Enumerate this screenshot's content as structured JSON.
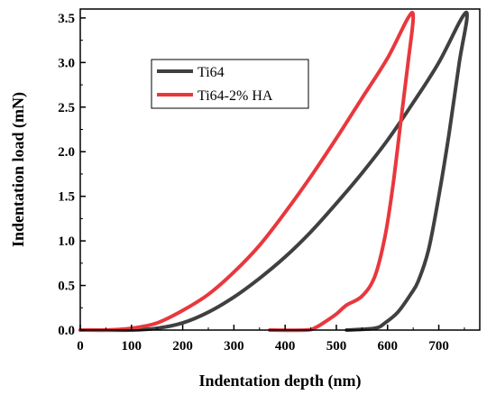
{
  "chart_data": {
    "type": "line",
    "title": "",
    "xlabel": "Indentation depth (nm)",
    "ylabel": "Indentation load (mN)",
    "xlim": [
      0,
      780
    ],
    "ylim": [
      0,
      3.6
    ],
    "xticks": [
      0,
      100,
      200,
      300,
      400,
      500,
      600,
      700
    ],
    "yticks": [
      0.0,
      0.5,
      1.0,
      1.5,
      2.0,
      2.5,
      3.0,
      3.5
    ],
    "xtick_labels": [
      "0",
      "100",
      "200",
      "300",
      "400",
      "500",
      "600",
      "700"
    ],
    "ytick_labels": [
      "0.0",
      "0.5",
      "1.0",
      "1.5",
      "2.0",
      "2.5",
      "3.0",
      "3.5"
    ],
    "grid": false,
    "legend_position": "top-left",
    "series": [
      {
        "name": "Ti64",
        "color": "#404040",
        "loading": [
          [
            0,
            0.0
          ],
          [
            100,
            0.0
          ],
          [
            150,
            0.02
          ],
          [
            200,
            0.08
          ],
          [
            250,
            0.2
          ],
          [
            300,
            0.37
          ],
          [
            350,
            0.58
          ],
          [
            400,
            0.82
          ],
          [
            450,
            1.1
          ],
          [
            500,
            1.42
          ],
          [
            550,
            1.76
          ],
          [
            600,
            2.13
          ],
          [
            650,
            2.55
          ],
          [
            700,
            3.0
          ],
          [
            745,
            3.5
          ]
        ],
        "unloading": [
          [
            755,
            3.5
          ],
          [
            740,
            3.0
          ],
          [
            720,
            2.2
          ],
          [
            700,
            1.5
          ],
          [
            680,
            0.9
          ],
          [
            660,
            0.55
          ],
          [
            645,
            0.4
          ],
          [
            620,
            0.2
          ],
          [
            595,
            0.08
          ],
          [
            575,
            0.02
          ],
          [
            520,
            0.0
          ]
        ]
      },
      {
        "name": "Ti64-2% HA",
        "color": "#e8383d",
        "loading": [
          [
            0,
            0.0
          ],
          [
            50,
            0.0
          ],
          [
            100,
            0.02
          ],
          [
            150,
            0.08
          ],
          [
            200,
            0.22
          ],
          [
            250,
            0.4
          ],
          [
            300,
            0.65
          ],
          [
            350,
            0.95
          ],
          [
            400,
            1.32
          ],
          [
            450,
            1.72
          ],
          [
            500,
            2.15
          ],
          [
            550,
            2.6
          ],
          [
            600,
            3.05
          ],
          [
            640,
            3.5
          ]
        ],
        "unloading": [
          [
            650,
            3.5
          ],
          [
            640,
            3.0
          ],
          [
            625,
            2.3
          ],
          [
            610,
            1.6
          ],
          [
            595,
            1.05
          ],
          [
            575,
            0.6
          ],
          [
            550,
            0.38
          ],
          [
            520,
            0.28
          ],
          [
            500,
            0.18
          ],
          [
            480,
            0.1
          ],
          [
            460,
            0.03
          ],
          [
            440,
            0.0
          ],
          [
            370,
            0.0
          ]
        ]
      }
    ]
  }
}
